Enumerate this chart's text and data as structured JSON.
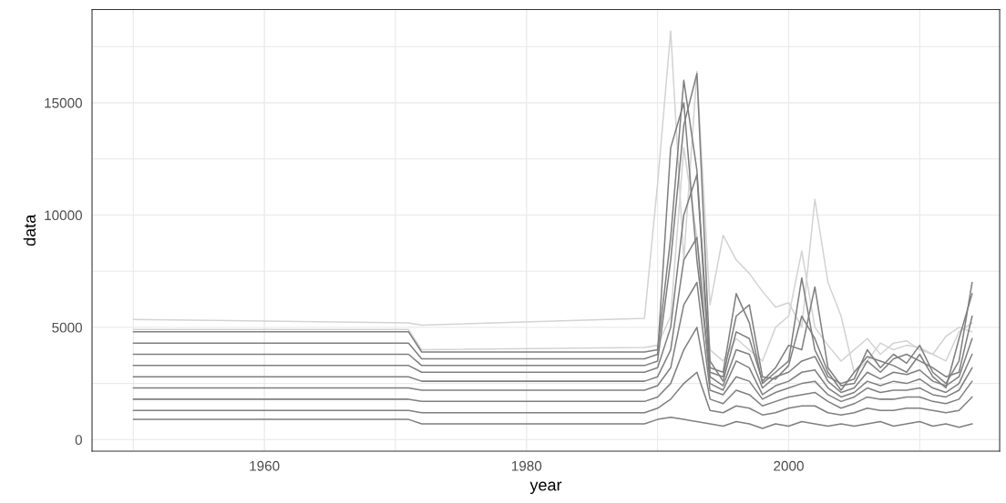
{
  "chart_data": {
    "type": "line",
    "xlabel": "year",
    "ylabel": "data",
    "x": [
      1950,
      1971,
      1972,
      1989,
      1990,
      1991,
      1992,
      1993,
      1994,
      1995,
      1996,
      1997,
      1998,
      1999,
      2000,
      2001,
      2002,
      2003,
      2004,
      2005,
      2006,
      2007,
      2008,
      2009,
      2010,
      2011,
      2012,
      2013,
      2014
    ],
    "series": [
      {
        "color": "#d3d3d3",
        "values": [
          5350,
          5200,
          5100,
          5400,
          11400,
          18200,
          8000,
          16400,
          6000,
          9100,
          8000,
          7400,
          6600,
          5900,
          6100,
          5000,
          10700,
          7000,
          5500,
          3000,
          3500,
          4300,
          4000,
          4200,
          4100,
          3800,
          4600,
          5000,
          4800
        ]
      },
      {
        "color": "#d3d3d3",
        "values": [
          4900,
          4900,
          4000,
          4100,
          4200,
          5500,
          13000,
          9000,
          4000,
          3500,
          4500,
          4000,
          3500,
          5000,
          5500,
          8400,
          5000,
          4200,
          3500,
          4000,
          4500,
          3800,
          4300,
          4400,
          4000,
          3800,
          3500,
          4800,
          5200
        ]
      },
      {
        "color": "#7f7f7f",
        "values": [
          4800,
          4800,
          3900,
          3900,
          4000,
          9000,
          16000,
          12000,
          3200,
          3000,
          6500,
          5200,
          2500,
          3000,
          3500,
          7200,
          4000,
          2800,
          2500,
          2700,
          4000,
          3200,
          3800,
          3400,
          4200,
          3000,
          2500,
          3500,
          7000
        ]
      },
      {
        "color": "#7f7f7f",
        "values": [
          4300,
          4300,
          3600,
          3600,
          3800,
          13000,
          15000,
          8000,
          3000,
          2800,
          5500,
          6000,
          2800,
          2700,
          3300,
          5500,
          4500,
          3000,
          2200,
          3000,
          3700,
          3500,
          3300,
          3000,
          3800,
          2800,
          2300,
          4500,
          6500
        ]
      },
      {
        "color": "#7f7f7f",
        "values": [
          3800,
          3800,
          3300,
          3300,
          3500,
          8000,
          14000,
          16300,
          3500,
          2600,
          4800,
          4500,
          2600,
          3200,
          4200,
          4000,
          6800,
          3200,
          2400,
          2500,
          3500,
          3000,
          3600,
          3800,
          3500,
          3200,
          2800,
          3000,
          5500
        ]
      },
      {
        "color": "#7f7f7f",
        "values": [
          3300,
          3300,
          3000,
          3000,
          3200,
          5000,
          10000,
          11800,
          2800,
          2400,
          4000,
          3800,
          2300,
          2800,
          3000,
          3500,
          3700,
          2600,
          2100,
          2300,
          3000,
          2700,
          3000,
          2900,
          3100,
          2600,
          2400,
          2800,
          4500
        ]
      },
      {
        "color": "#7f7f7f",
        "values": [
          2800,
          2800,
          2600,
          2600,
          2800,
          4000,
          8000,
          9000,
          2500,
          2200,
          3500,
          3200,
          2000,
          2400,
          2600,
          3000,
          3100,
          2300,
          1900,
          2100,
          2600,
          2400,
          2600,
          2500,
          2700,
          2300,
          2100,
          2500,
          3800
        ]
      },
      {
        "color": "#7f7f7f",
        "values": [
          2300,
          2300,
          2200,
          2200,
          2400,
          3200,
          6000,
          7000,
          2200,
          2000,
          2800,
          2600,
          1800,
          2100,
          2300,
          2500,
          2600,
          2000,
          1700,
          1900,
          2300,
          2100,
          2200,
          2200,
          2300,
          2000,
          1900,
          2200,
          3200
        ]
      },
      {
        "color": "#7f7f7f",
        "values": [
          1800,
          1800,
          1700,
          1700,
          1900,
          2500,
          4000,
          5000,
          1800,
          1600,
          2200,
          2000,
          1500,
          1700,
          1900,
          2000,
          2100,
          1700,
          1400,
          1600,
          1900,
          1800,
          1800,
          1900,
          1900,
          1700,
          1600,
          1800,
          2600
        ]
      },
      {
        "color": "#7f7f7f",
        "values": [
          1300,
          1300,
          1200,
          1200,
          1400,
          1800,
          2500,
          3000,
          1300,
          1200,
          1500,
          1400,
          1100,
          1200,
          1400,
          1500,
          1500,
          1200,
          1100,
          1200,
          1400,
          1300,
          1300,
          1400,
          1400,
          1300,
          1200,
          1300,
          1900
        ]
      },
      {
        "color": "#7f7f7f",
        "values": [
          900,
          900,
          700,
          700,
          900,
          1000,
          900,
          800,
          700,
          600,
          800,
          700,
          500,
          700,
          600,
          800,
          700,
          600,
          700,
          600,
          700,
          800,
          600,
          700,
          800,
          600,
          700,
          550,
          700
        ]
      }
    ],
    "xlim": [
      1946.85,
      2016.1
    ],
    "ylim": [
      -515,
      19150
    ],
    "xticks": [
      {
        "value": 1950,
        "label": null
      },
      1960,
      {
        "value": 1970,
        "label": null
      },
      1980,
      {
        "value": 1990,
        "label": null
      },
      2000,
      {
        "value": 2010,
        "label": null
      }
    ],
    "yticks": [
      0,
      {
        "value": 2500,
        "label": null
      },
      5000,
      {
        "value": 7500,
        "label": null
      },
      10000,
      {
        "value": 12500,
        "label": null
      },
      15000,
      {
        "value": 17500,
        "label": null
      }
    ],
    "grid": true,
    "legend": false
  }
}
